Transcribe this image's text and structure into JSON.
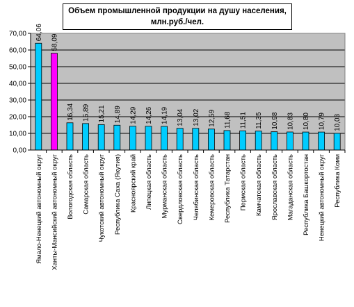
{
  "chart_data": {
    "type": "bar",
    "title_line1": "Объем промышленной продукции на душу населения,",
    "title_line2": "млн.руб./чел.",
    "xlabel": "",
    "ylabel": "",
    "ylim": [
      0,
      70
    ],
    "yticks": [
      "0,00",
      "10,00",
      "20,00",
      "30,00",
      "40,00",
      "50,00",
      "60,00",
      "70,00"
    ],
    "grid": true,
    "legend": "none",
    "plot_background": "#C0C0C0",
    "bar_color": "#00CCFF",
    "highlight_color": "#FF00FF",
    "highlight_index": 1,
    "categories": [
      "Ямало-Ненецкий автономный округ",
      "Ханты-Мансийский автономный округ",
      "Вологодская область",
      "Самарская область",
      "Чукотский автономный округ",
      "Республика Саха (Якутия)",
      "Красноярский край",
      "Липецкая область",
      "Мурманская область",
      "Свердловская область",
      "Челябинская область",
      "Кемеровская область",
      "Республика Татарстан",
      "Пермская область",
      "Камчатская область",
      "Ярославская область",
      "Магаданская область",
      "Республика Башкортостан",
      "Ненецкий автономный округ",
      "Республика Коми"
    ],
    "values": [
      64.06,
      58.09,
      16.34,
      15.89,
      15.21,
      14.89,
      14.29,
      14.26,
      14.19,
      13.04,
      13.02,
      12.59,
      11.68,
      11.51,
      11.35,
      10.98,
      10.83,
      10.8,
      10.79,
      10.03
    ],
    "value_labels": [
      "64,06",
      "58,09",
      "16,34",
      "15,89",
      "15,21",
      "14,89",
      "14,29",
      "14,26",
      "14,19",
      "13,04",
      "13,02",
      "12,59",
      "11,68",
      "11,51",
      "11,35",
      "10,98",
      "10,83",
      "10,80",
      "10,79",
      "10,03"
    ]
  }
}
